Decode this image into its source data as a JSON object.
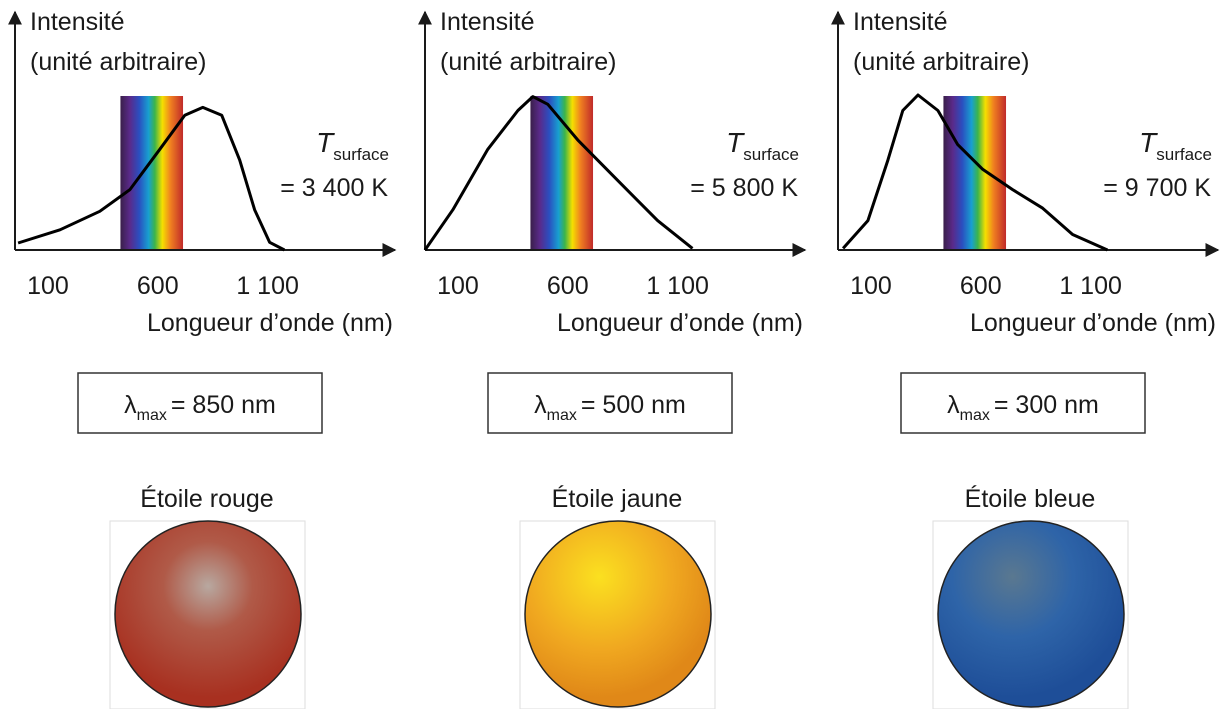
{
  "chart_data": [
    {
      "type": "line",
      "ylabel": [
        "Intensité",
        "(unité arbitraire)"
      ],
      "xlabel": "Longueur d’onde (nm)",
      "xlim": [
        -50,
        1680
      ],
      "ylim": [
        0,
        1
      ],
      "xticks": [
        100,
        600,
        {
          "value": 1100,
          "label": "1 100"
        }
      ],
      "spectrum": [
        430,
        715
      ],
      "color": "#000000",
      "x": [
        -36,
        155,
        336,
        473,
        609,
        723,
        805,
        891,
        973,
        1041,
        1109,
        1177
      ],
      "values": [
        0.045,
        0.13,
        0.25,
        0.39,
        0.65,
        0.87,
        0.92,
        0.87,
        0.58,
        0.26,
        0.05,
        0
      ],
      "annotation": {
        "symbol": "T",
        "subscript": "surface",
        "text": "= 3 400 K"
      },
      "lambda_max": {
        "symbol": "λ",
        "subscript": "max",
        "text": "= 850 nm"
      },
      "star_label": "Étoile rouge"
    },
    {
      "type": "line",
      "ylabel": [
        "Intensité",
        "(unité arbitraire)"
      ],
      "xlabel": "Longueur d’onde (nm)",
      "xlim": [
        -50,
        1680
      ],
      "ylim": [
        0,
        1
      ],
      "xticks": [
        100,
        600,
        {
          "value": 1100,
          "label": "1 100"
        }
      ],
      "spectrum": [
        430,
        715
      ],
      "color": "#000000",
      "x": [
        -50,
        77,
        236,
        373,
        441,
        509,
        645,
        827,
        1009,
        1168
      ],
      "values": [
        0,
        0.26,
        0.65,
        0.9,
        0.99,
        0.94,
        0.71,
        0.45,
        0.19,
        0.01
      ],
      "annotation": {
        "symbol": "T",
        "subscript": "surface",
        "text": "= 5 800 K"
      },
      "lambda_max": {
        "symbol": "λ",
        "subscript": "max",
        "text": "= 500 nm"
      },
      "star_label": "Étoile jaune"
    },
    {
      "type": "line",
      "ylabel": [
        "Intensité",
        "(unité arbitraire)"
      ],
      "xlabel": "Longueur d’onde (nm)",
      "xlim": [
        -50,
        1680
      ],
      "ylim": [
        0,
        1
      ],
      "xticks": [
        100,
        600,
        {
          "value": 1100,
          "label": "1 100"
        }
      ],
      "spectrum": [
        430,
        715
      ],
      "color": "#000000",
      "x": [
        -27,
        86,
        177,
        245,
        314,
        405,
        495,
        609,
        745,
        882,
        1018,
        1177
      ],
      "values": [
        0.01,
        0.19,
        0.58,
        0.9,
        1.0,
        0.9,
        0.68,
        0.52,
        0.39,
        0.27,
        0.1,
        0
      ],
      "annotation": {
        "symbol": "T",
        "subscript": "surface",
        "text": "= 9 700 K"
      },
      "lambda_max": {
        "symbol": "λ",
        "subscript": "max",
        "text": "= 300 nm"
      },
      "star_label": "Étoile bleue"
    }
  ]
}
